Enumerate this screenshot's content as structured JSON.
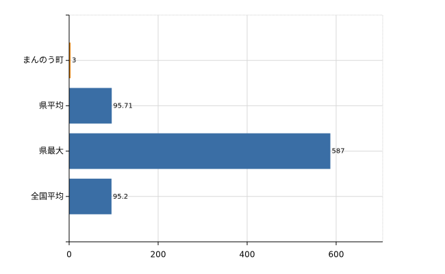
{
  "chart_data": {
    "type": "hbar",
    "categories": [
      "まんのう町",
      "県平均",
      "県最大",
      "全国平均"
    ],
    "values": [
      3,
      95.71,
      587,
      95.2
    ],
    "colors": [
      "#e07b00",
      "#3a6ea5",
      "#3a6ea5",
      "#3a6ea5"
    ],
    "xlim": [
      0,
      700
    ],
    "xticks": [
      0,
      200,
      400,
      600
    ],
    "grid": true
  }
}
